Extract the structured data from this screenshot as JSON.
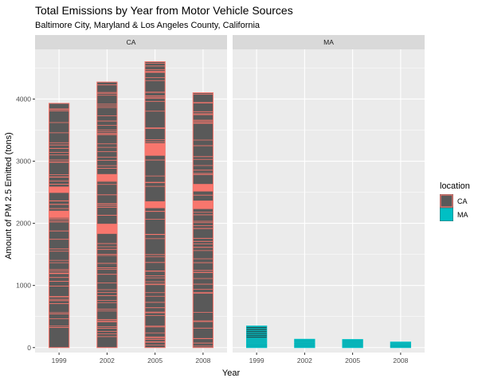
{
  "chart_data": {
    "type": "bar",
    "title": "Total Emissions by Year from Motor Vehicle Sources",
    "subtitle": "Baltimore City, Maryland & Los Angeles County, California",
    "xlabel": "Year",
    "ylabel": "Amount of PM 2.5 Emitted (tons)",
    "categories": [
      "1999",
      "2002",
      "2005",
      "2008"
    ],
    "ylim": [
      -80,
      4800
    ],
    "yticks": [
      0,
      1000,
      2000,
      3000,
      4000
    ],
    "panels": [
      {
        "name": "CA",
        "values": [
          3931,
          4274,
          4601,
          4101
        ]
      },
      {
        "name": "MA",
        "values": [
          347,
          134,
          130,
          89
        ]
      }
    ],
    "legend": {
      "title": "location",
      "position": "right",
      "entries": [
        {
          "label": "CA",
          "color": "#F8766D"
        },
        {
          "label": "MA",
          "color": "#00BFC4"
        }
      ]
    },
    "grid": true
  },
  "colors": {
    "panel_bg": "#EBEBEB",
    "strip_bg": "#D9D9D9",
    "grid_major": "#FFFFFF",
    "bar_fill": "#595959",
    "CA": "#F8766D",
    "MA": "#00BFC4"
  }
}
